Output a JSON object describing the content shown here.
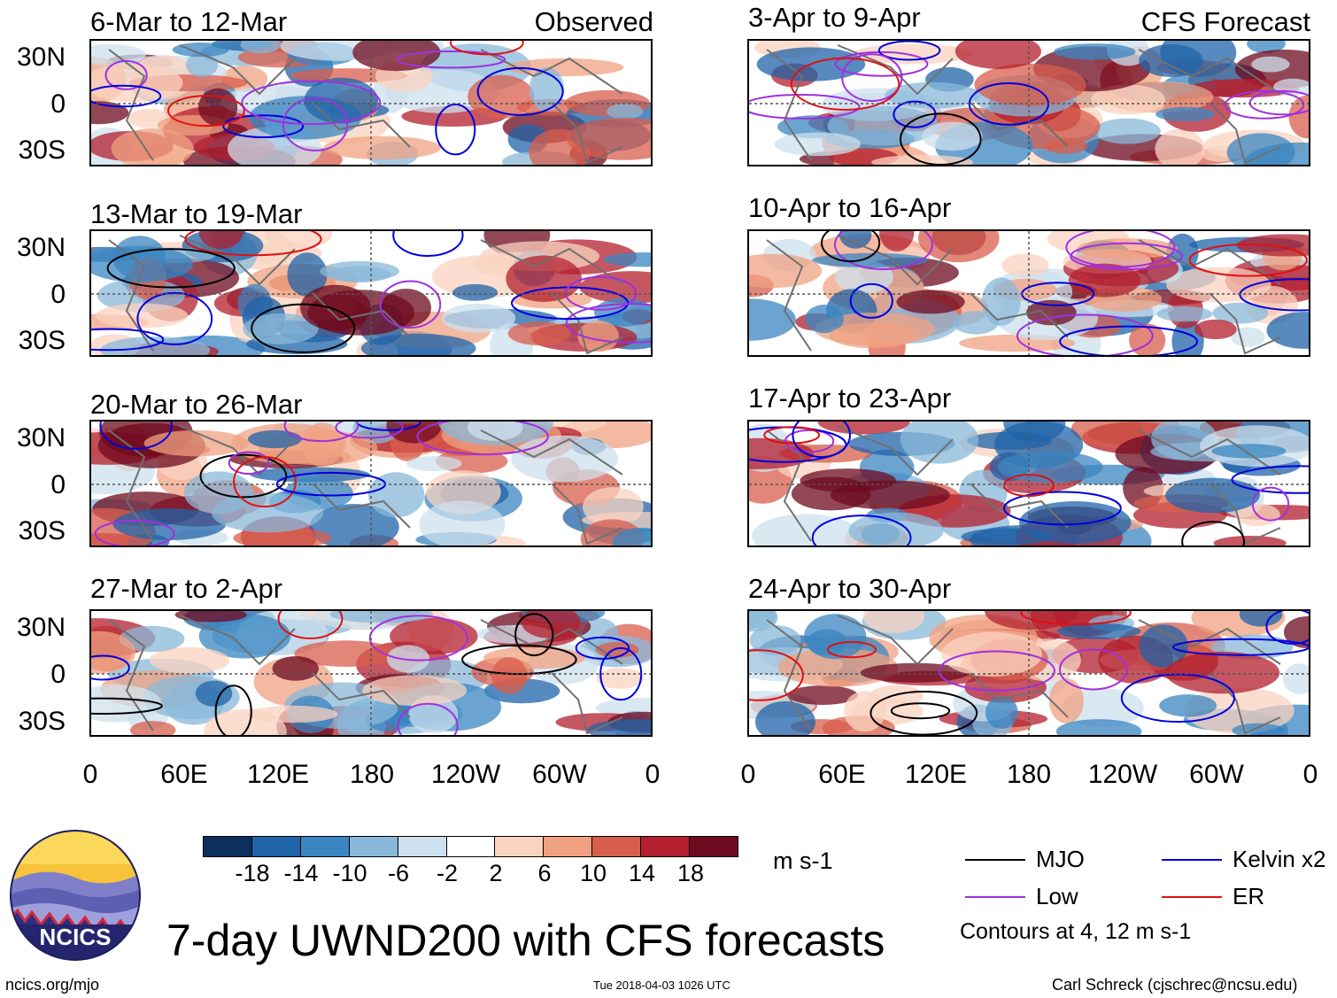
{
  "header": {
    "observed_label": "Observed",
    "forecast_label": "CFS Forecast"
  },
  "panels_left": [
    {
      "title": "6-Mar to 12-Mar"
    },
    {
      "title": "13-Mar to 19-Mar"
    },
    {
      "title": "20-Mar to 26-Mar"
    },
    {
      "title": "27-Mar to 2-Apr"
    }
  ],
  "panels_right": [
    {
      "title": "3-Apr to 9-Apr"
    },
    {
      "title": "10-Apr to 16-Apr"
    },
    {
      "title": "17-Apr to 23-Apr"
    },
    {
      "title": "24-Apr to 30-Apr"
    }
  ],
  "axes": {
    "lat_ticks": [
      "30N",
      "0",
      "30S"
    ],
    "lon_ticks": [
      "0",
      "60E",
      "120E",
      "180",
      "120W",
      "60W",
      "0"
    ]
  },
  "colorbar": {
    "tick_labels": [
      "-18",
      "-14",
      "-10",
      "-6",
      "-2",
      "2",
      "6",
      "10",
      "14",
      "18"
    ],
    "units": "m s-1",
    "colors": [
      "#0b2f5e",
      "#1f63a8",
      "#3a86c1",
      "#8ab8da",
      "#cde0ee",
      "#ffffff",
      "#f9d3c0",
      "#f0a181",
      "#d85e4c",
      "#b31f2e",
      "#6e0a1f"
    ]
  },
  "legend": {
    "items": [
      {
        "label": "MJO",
        "color": "#000000"
      },
      {
        "label": "Kelvin x2",
        "color": "#0000e0"
      },
      {
        "label": "Low",
        "color": "#a030e0"
      },
      {
        "label": "ER",
        "color": "#e01010"
      }
    ],
    "contour_note": "Contours at 4, 12 m s-1"
  },
  "title": "7-day UWND200 with CFS forecasts",
  "logo_text": "NCICS",
  "footer": {
    "url": "ncics.org/mjo",
    "timestamp": "Tue 2018-04-03 1026 UTC",
    "author": "Carl Schreck (cjschrec@ncsu.edu)"
  }
}
